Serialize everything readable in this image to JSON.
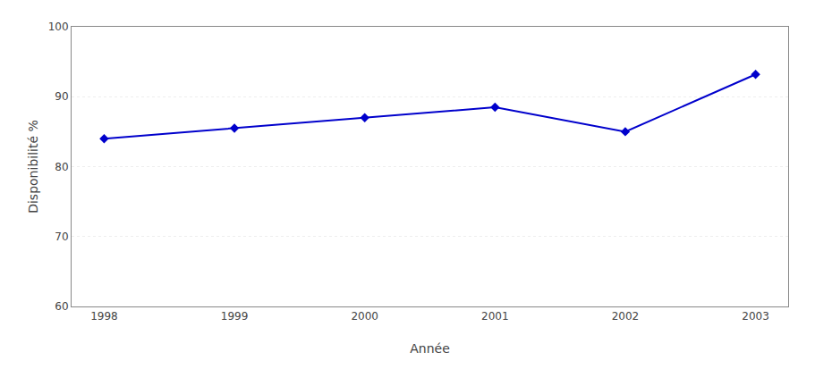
{
  "chart_data": {
    "type": "line",
    "x": [
      1998,
      1999,
      2000,
      2001,
      2002,
      2003
    ],
    "values": [
      84.0,
      85.5,
      87.0,
      88.5,
      85.0,
      93.2
    ],
    "xlabel": "Année",
    "ylabel": "Disponibilité %",
    "xlim": [
      1997.75,
      2003.25
    ],
    "xticks": [
      1998,
      1999,
      2000,
      2001,
      2002,
      2003
    ],
    "ylim": [
      60,
      100
    ],
    "yticks": [
      60,
      70,
      80,
      90,
      100
    ],
    "color": "#0000CC",
    "marker": "diamond",
    "line_style": "solid",
    "grid": "y"
  }
}
